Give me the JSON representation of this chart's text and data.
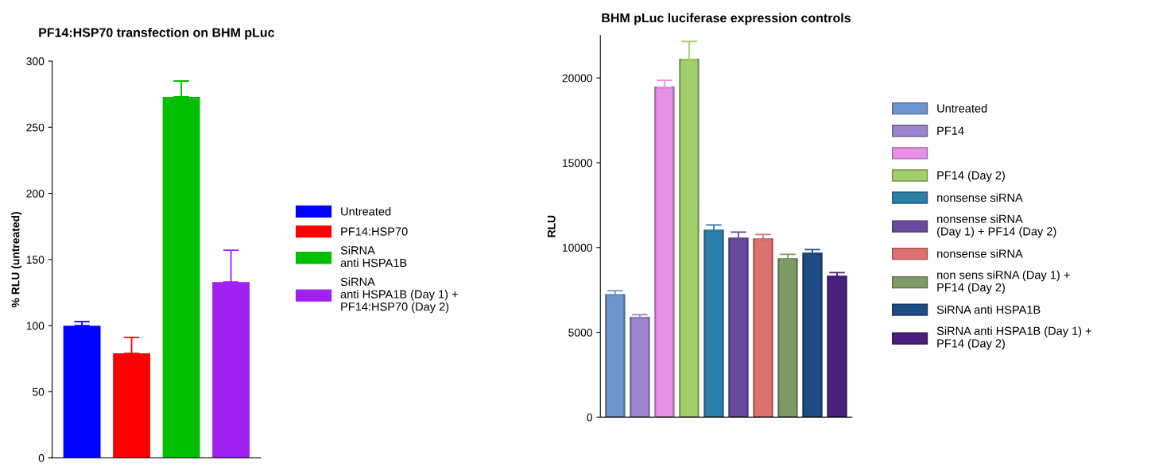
{
  "chart_data": [
    {
      "type": "bar",
      "title": "PF14:HSP70 transfection on BHM pLuc",
      "ylabel": "% RLU (untreated)",
      "categories": [
        null,
        null,
        null,
        null
      ],
      "series": [
        {
          "name": "Untreated",
          "color": "#0000ff",
          "values": [
            100,
            null,
            null,
            null
          ],
          "errors": [
            [
              100,
              103
            ],
            null,
            null,
            null
          ]
        },
        {
          "name": "PF14:HSP70",
          "color": "#ff0000",
          "values": [
            null,
            79,
            null,
            null
          ],
          "errors": [
            null,
            [
              79,
              91
            ],
            null,
            null
          ]
        },
        {
          "name": "SiRNA\nanti HSPA1B",
          "color": "#00c000",
          "values": [
            null,
            null,
            273,
            null
          ],
          "errors": [
            null,
            null,
            [
              273,
              285
            ],
            null
          ]
        },
        {
          "name": "SiRNA\nanti HSPA1B (Day 1) +\nPF14:HSP70 (Day 2)",
          "color": "#a020f0",
          "values": [
            null,
            null,
            null,
            133
          ],
          "errors": [
            null,
            null,
            null,
            [
              133,
              157
            ]
          ]
        }
      ],
      "ylim": [
        0,
        300
      ],
      "yticks": [
        0,
        50,
        100,
        150,
        200,
        250,
        300
      ],
      "tick_labels": "y",
      "legend": "right",
      "grid": false
    },
    {
      "type": "bar",
      "title": "BHM pLuc luciferase expression controls",
      "ylabel": "RLU",
      "categories": [
        null,
        null,
        null,
        null,
        null,
        null,
        null,
        null,
        null,
        null
      ],
      "series": [
        {
          "name": "Untreated",
          "color": "#6f95cf",
          "values": [
            7200,
            null,
            null,
            null,
            null,
            null,
            null,
            null,
            null,
            null
          ],
          "errors": [
            [
              7200,
              7450
            ],
            null,
            null,
            null,
            null,
            null,
            null,
            null,
            null,
            null
          ]
        },
        {
          "name": "PF14",
          "color": "#9c85d0",
          "values": [
            null,
            5850,
            null,
            null,
            null,
            null,
            null,
            null,
            null,
            null
          ],
          "errors": [
            null,
            [
              5850,
              6040
            ],
            null,
            null,
            null,
            null,
            null,
            null,
            null,
            null
          ]
        },
        {
          "color": "#e88fe6",
          "values": [
            null,
            null,
            19440,
            null,
            null,
            null,
            null,
            null,
            null,
            null
          ],
          "errors": [
            null,
            null,
            [
              19440,
              19860
            ],
            null,
            null,
            null,
            null,
            null,
            null,
            null
          ]
        },
        {
          "name": "PF14 (Day 2)",
          "color": "#a2cf6a",
          "values": [
            null,
            null,
            null,
            21080,
            null,
            null,
            null,
            null,
            null,
            null
          ],
          "errors": [
            null,
            null,
            null,
            [
              21080,
              22150
            ],
            null,
            null,
            null,
            null,
            null,
            null
          ]
        },
        {
          "name": "nonsense siRNA",
          "color": "#2c7fa6",
          "values": [
            null,
            null,
            null,
            null,
            11010,
            null,
            null,
            null,
            null,
            null
          ],
          "errors": [
            null,
            null,
            null,
            null,
            [
              11010,
              11330
            ],
            null,
            null,
            null,
            null,
            null
          ]
        },
        {
          "name": "nonsense siRNA\n(Day 1) + PF14 (Day 2)",
          "color": "#6a4a9e",
          "values": [
            null,
            null,
            null,
            null,
            null,
            10540,
            null,
            null,
            null,
            null
          ],
          "errors": [
            null,
            null,
            null,
            null,
            null,
            [
              10540,
              10910
            ],
            null,
            null,
            null,
            null
          ]
        },
        {
          "name": "nonsense siRNA",
          "color": "#e07070",
          "values": [
            null,
            null,
            null,
            null,
            null,
            null,
            10490,
            null,
            null,
            null
          ],
          "errors": [
            null,
            null,
            null,
            null,
            null,
            null,
            [
              10490,
              10770
            ],
            null,
            null,
            null
          ]
        },
        {
          "name": "non sens siRNA (Day 1) +\nPF14 (Day 2)",
          "color": "#7f9b65",
          "values": [
            null,
            null,
            null,
            null,
            null,
            null,
            null,
            9320,
            null,
            null
          ],
          "errors": [
            null,
            null,
            null,
            null,
            null,
            null,
            null,
            [
              9320,
              9600
            ],
            null,
            null
          ]
        },
        {
          "name": "SiRNA anti HSPA1B",
          "color": "#1e4a85",
          "values": [
            null,
            null,
            null,
            null,
            null,
            null,
            null,
            null,
            9650,
            null
          ],
          "errors": [
            null,
            null,
            null,
            null,
            null,
            null,
            null,
            null,
            [
              9650,
              9880
            ],
            null
          ]
        },
        {
          "name": "SiRNA anti HSPA1B (Day 1) +\nPF14 (Day 2)",
          "color": "#4b1f7e",
          "values": [
            null,
            null,
            null,
            null,
            null,
            null,
            null,
            null,
            null,
            8290
          ],
          "errors": [
            null,
            null,
            null,
            null,
            null,
            null,
            null,
            null,
            null,
            [
              8290,
              8520
            ]
          ]
        }
      ],
      "ylim": [
        0,
        22500
      ],
      "yticks": [
        0,
        5000,
        10000,
        15000,
        20000
      ],
      "tick_labels": "y",
      "legend": "right",
      "grid": false
    }
  ]
}
